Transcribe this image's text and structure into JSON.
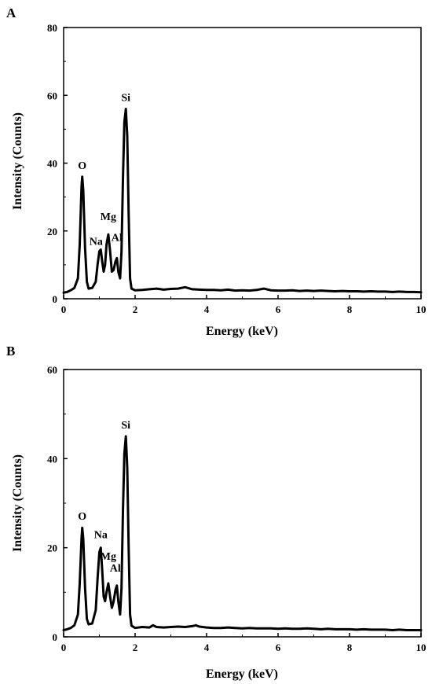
{
  "chart_data": [
    {
      "type": "line",
      "panel_label": "A",
      "xlabel": "Energy (keV)",
      "ylabel": "Intensity (Counts)",
      "xlim": [
        0,
        10
      ],
      "ylim": [
        0,
        80
      ],
      "x_ticks": [
        0,
        2,
        4,
        6,
        8,
        10
      ],
      "y_ticks": [
        0,
        20,
        40,
        60,
        80
      ],
      "line_color": "#000000",
      "peaks": [
        {
          "label": "O",
          "x": 0.52,
          "y": 36
        },
        {
          "label": "Na",
          "x": 1.04,
          "y": 14
        },
        {
          "label": "Mg",
          "x": 1.25,
          "y": 19
        },
        {
          "label": "Al",
          "x": 1.49,
          "y": 12
        },
        {
          "label": "Si",
          "x": 1.74,
          "y": 56
        }
      ],
      "series": [
        {
          "x": [
            0.0,
            0.1,
            0.2,
            0.3,
            0.4,
            0.45,
            0.5,
            0.52,
            0.55,
            0.6,
            0.65,
            0.7,
            0.8,
            0.9,
            0.95,
            1.0,
            1.04,
            1.08,
            1.12,
            1.16,
            1.2,
            1.25,
            1.3,
            1.35,
            1.4,
            1.45,
            1.49,
            1.53,
            1.58,
            1.62,
            1.66,
            1.7,
            1.74,
            1.78,
            1.82,
            1.86,
            1.9,
            2.0,
            2.2,
            2.4,
            2.6,
            2.8,
            3.0,
            3.2,
            3.4,
            3.6,
            3.8,
            4.0,
            4.2,
            4.4,
            4.6,
            4.8,
            5.0,
            5.2,
            5.4,
            5.6,
            5.8,
            6.0,
            6.2,
            6.4,
            6.6,
            6.8,
            7.0,
            7.2,
            7.4,
            7.6,
            7.8,
            8.0,
            8.2,
            8.4,
            8.6,
            8.8,
            9.0,
            9.2,
            9.4,
            9.6,
            9.8,
            10.0
          ],
          "values": [
            1.8,
            2.0,
            2.5,
            3.2,
            6.0,
            16.0,
            33.0,
            36.0,
            32.0,
            15.0,
            5.0,
            3.0,
            3.2,
            5.0,
            10.0,
            14.0,
            14.5,
            11.0,
            8.0,
            10.0,
            16.0,
            19.0,
            14.0,
            8.0,
            8.5,
            11.0,
            12.0,
            8.0,
            6.0,
            14.0,
            35.0,
            52.0,
            56.0,
            48.0,
            25.0,
            6.0,
            3.0,
            2.5,
            2.6,
            2.8,
            3.0,
            2.7,
            2.9,
            3.0,
            3.4,
            2.8,
            2.7,
            2.6,
            2.6,
            2.5,
            2.7,
            2.4,
            2.5,
            2.4,
            2.6,
            3.0,
            2.5,
            2.4,
            2.4,
            2.5,
            2.3,
            2.4,
            2.3,
            2.4,
            2.3,
            2.2,
            2.3,
            2.2,
            2.2,
            2.1,
            2.2,
            2.1,
            2.1,
            2.0,
            2.1,
            2.0,
            2.0,
            1.9
          ]
        }
      ]
    },
    {
      "type": "line",
      "panel_label": "B",
      "xlabel": "Energy (keV)",
      "ylabel": "Intensity (Counts)",
      "xlim": [
        0,
        10
      ],
      "ylim": [
        0,
        60
      ],
      "x_ticks": [
        0,
        2,
        4,
        6,
        8,
        10
      ],
      "y_ticks": [
        0,
        20,
        40,
        60
      ],
      "line_color": "#000000",
      "peaks": [
        {
          "label": "O",
          "x": 0.52,
          "y": 24.5
        },
        {
          "label": "Na",
          "x": 1.04,
          "y": 20
        },
        {
          "label": "Mg",
          "x": 1.25,
          "y": 12
        },
        {
          "label": "Al",
          "x": 1.49,
          "y": 11.5
        },
        {
          "label": "Si",
          "x": 1.74,
          "y": 45
        }
      ],
      "series": [
        {
          "x": [
            0.0,
            0.1,
            0.2,
            0.3,
            0.4,
            0.45,
            0.5,
            0.52,
            0.55,
            0.6,
            0.65,
            0.7,
            0.8,
            0.9,
            0.95,
            1.0,
            1.04,
            1.08,
            1.12,
            1.16,
            1.2,
            1.25,
            1.3,
            1.35,
            1.4,
            1.45,
            1.49,
            1.53,
            1.58,
            1.62,
            1.66,
            1.7,
            1.74,
            1.78,
            1.82,
            1.86,
            1.9,
            2.0,
            2.2,
            2.4,
            2.5,
            2.6,
            2.8,
            3.0,
            3.2,
            3.4,
            3.6,
            3.7,
            3.8,
            4.0,
            4.2,
            4.4,
            4.6,
            4.8,
            5.0,
            5.2,
            5.4,
            5.6,
            5.8,
            6.0,
            6.2,
            6.4,
            6.6,
            6.8,
            7.0,
            7.2,
            7.4,
            7.6,
            7.8,
            8.0,
            8.2,
            8.4,
            8.6,
            8.8,
            9.0,
            9.2,
            9.4,
            9.6,
            9.8,
            10.0
          ],
          "values": [
            1.5,
            1.7,
            2.0,
            2.6,
            5.0,
            12.0,
            22.0,
            24.5,
            22.0,
            11.0,
            4.0,
            2.8,
            3.0,
            6.0,
            13.0,
            19.0,
            20.0,
            15.0,
            9.0,
            8.0,
            10.0,
            12.0,
            9.0,
            6.5,
            8.0,
            10.5,
            11.5,
            8.0,
            5.0,
            11.0,
            28.0,
            41.0,
            45.0,
            38.0,
            20.0,
            5.0,
            2.5,
            2.0,
            2.2,
            2.1,
            2.6,
            2.2,
            2.1,
            2.2,
            2.3,
            2.2,
            2.4,
            2.6,
            2.3,
            2.1,
            2.0,
            2.0,
            2.1,
            2.0,
            1.9,
            2.0,
            1.9,
            1.9,
            1.9,
            1.8,
            1.9,
            1.8,
            1.8,
            1.9,
            1.8,
            1.7,
            1.8,
            1.7,
            1.7,
            1.7,
            1.6,
            1.7,
            1.6,
            1.6,
            1.6,
            1.5,
            1.6,
            1.5,
            1.5,
            1.5
          ]
        }
      ]
    }
  ]
}
